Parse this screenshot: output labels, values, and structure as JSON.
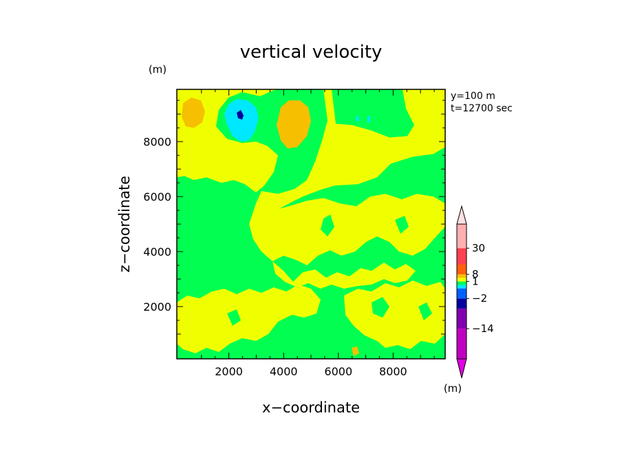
{
  "chart_data": {
    "type": "heatmap",
    "title": "vertical velocity",
    "xlabel": "x−coordinate",
    "ylabel": "z−coordinate",
    "x_unit": "(m)",
    "y_unit": "(m)",
    "info_line1": "y=100 m",
    "info_line2": "t=12700 sec",
    "xlim": [
      100,
      9900
    ],
    "ylim": [
      100,
      9900
    ],
    "x_ticks": [
      2000,
      4000,
      6000,
      8000
    ],
    "y_ticks": [
      2000,
      4000,
      6000,
      8000
    ],
    "x_tick_labels": [
      "2000",
      "4000",
      "6000",
      "8000"
    ],
    "y_tick_labels": [
      "2000",
      "4000",
      "6000",
      "8000"
    ],
    "colorbar": {
      "unit": "(m)",
      "levels": [
        -30,
        -14,
        -8,
        -2,
        -1,
        0,
        1,
        2,
        8,
        14,
        30
      ],
      "labels": [
        {
          "value": 30,
          "text": "30"
        },
        {
          "value": 8,
          "text": "8"
        },
        {
          "value": 1,
          "text": "1"
        },
        {
          "value": -2,
          "text": "−2"
        },
        {
          "value": -14,
          "text": "−14"
        }
      ],
      "colors": [
        "#c000c0",
        "#8000b0",
        "#0000a0",
        "#0060ff",
        "#00e8ff",
        "#00ff50",
        "#f0ff00",
        "#f6c000",
        "#ff6010",
        "#ff4050",
        "#ffb0b0"
      ],
      "over_color": "#ffe0e0",
      "under_color": "#e000e0"
    },
    "colors": {
      "background": "#00ff50",
      "positive": "#f0ff00",
      "strong_positive": "#f6c000",
      "negative": "#00e8ff",
      "strong_negative": "#0000a0",
      "extreme": "#ff9000"
    }
  }
}
